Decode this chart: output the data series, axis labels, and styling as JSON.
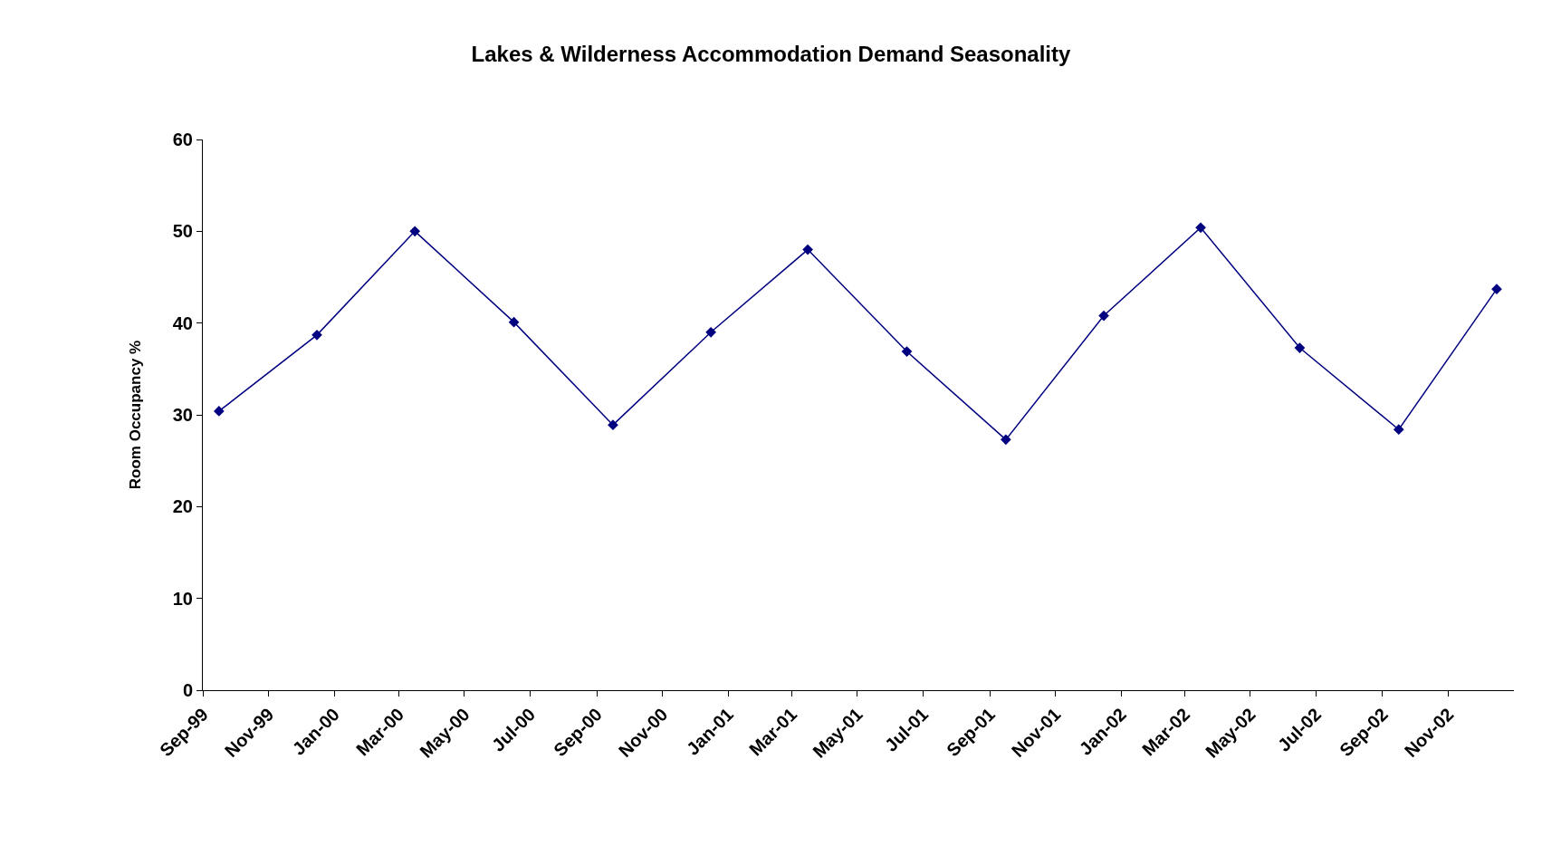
{
  "chart_data": {
    "type": "line",
    "title": "Lakes & Wilderness Accommodation Demand Seasonality",
    "ylabel": "Room Occupancy %",
    "x": [
      "1999-09-16",
      "1999-12-16",
      "2000-03-16",
      "2000-06-16",
      "2000-09-16",
      "2000-12-16",
      "2001-03-16",
      "2001-06-16",
      "2001-09-16",
      "2001-12-16",
      "2002-03-16",
      "2002-06-16",
      "2002-09-16",
      "2002-12-16"
    ],
    "series": [
      {
        "color": "#000080",
        "values": [
          30.4,
          38.7,
          50.0,
          40.1,
          28.9,
          39.0,
          48.0,
          36.9,
          27.3,
          40.8,
          50.4,
          37.3,
          28.4,
          43.7
        ]
      }
    ],
    "xlim": [
      "1999-09-01",
      "2003-01-01"
    ],
    "xticks": [
      {
        "value": "1999-09-01",
        "label": "Sep-99"
      },
      {
        "value": "1999-11-01",
        "label": "Nov-99"
      },
      {
        "value": "2000-01-01",
        "label": "Jan-00"
      },
      {
        "value": "2000-03-01",
        "label": "Mar-00"
      },
      {
        "value": "2000-05-01",
        "label": "May-00"
      },
      {
        "value": "2000-07-01",
        "label": "Jul-00"
      },
      {
        "value": "2000-09-01",
        "label": "Sep-00"
      },
      {
        "value": "2000-11-01",
        "label": "Nov-00"
      },
      {
        "value": "2001-01-01",
        "label": "Jan-01"
      },
      {
        "value": "2001-03-01",
        "label": "Mar-01"
      },
      {
        "value": "2001-05-01",
        "label": "May-01"
      },
      {
        "value": "2001-07-01",
        "label": "Jul-01"
      },
      {
        "value": "2001-09-01",
        "label": "Sep-01"
      },
      {
        "value": "2001-11-01",
        "label": "Nov-01"
      },
      {
        "value": "2002-01-01",
        "label": "Jan-02"
      },
      {
        "value": "2002-03-01",
        "label": "Mar-02"
      },
      {
        "value": "2002-05-01",
        "label": "May-02"
      },
      {
        "value": "2002-07-01",
        "label": "Jul-02"
      },
      {
        "value": "2002-09-01",
        "label": "Sep-02"
      },
      {
        "value": "2002-11-01",
        "label": "Nov-02"
      }
    ],
    "ylim": [
      0,
      60
    ],
    "yticks": [
      0,
      10,
      20,
      30,
      40,
      50,
      60
    ],
    "grid": false,
    "marker": "diamond",
    "line_style": "solid"
  }
}
